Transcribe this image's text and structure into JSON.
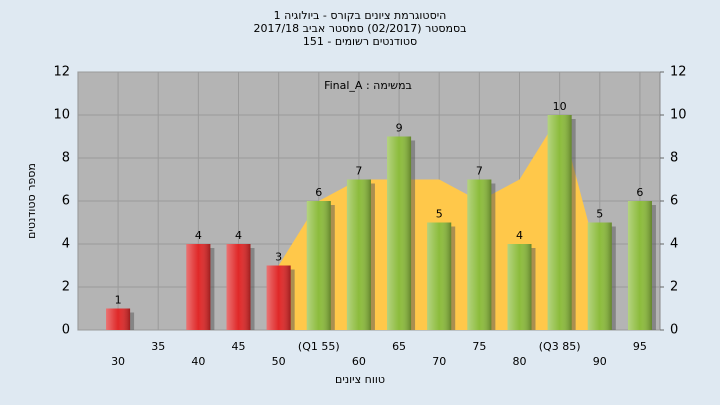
{
  "chart_data": {
    "type": "bar",
    "title": "היסטוגרמת ציונים בקורס - ביולוגיה 1",
    "subtitle": "בסמסטר  (02/2017)  סמסטר אביב 2017/18",
    "subtitle2": "סטודנטים רשומים - 151",
    "annotation": "במשימה : Final_A",
    "x_label": "טווח ציונים",
    "y_label": "מספר סטודנטים",
    "categories": [
      "30",
      "35",
      "40",
      "45",
      "50",
      "(Q1 55)",
      "60",
      "65",
      "70",
      "75",
      "80",
      "(Q3 85)",
      "90",
      "95"
    ],
    "values": [
      1,
      null,
      4,
      4,
      3,
      6,
      7,
      9,
      5,
      7,
      4,
      10,
      5,
      6
    ],
    "colors": [
      "#e02828",
      "#e02828",
      "#e02828",
      "#e02828",
      "#e02828",
      "#8cbc3c",
      "#8cbc3c",
      "#8cbc3c",
      "#8cbc3c",
      "#8cbc3c",
      "#8cbc3c",
      "#8cbc3c",
      "#8cbc3c",
      "#8cbc3c"
    ],
    "area": {
      "color": "#ffc84a",
      "values": [
        null,
        null,
        null,
        null,
        3,
        6,
        7,
        7,
        7,
        6,
        7,
        10,
        3,
        null
      ]
    },
    "ylim": [
      0,
      12
    ],
    "yticks": [
      0,
      2,
      4,
      6,
      8,
      10,
      12
    ],
    "y2lim": [
      0,
      12
    ],
    "y2ticks": [
      0,
      2,
      4,
      6,
      8,
      10,
      12
    ],
    "grid": true
  }
}
